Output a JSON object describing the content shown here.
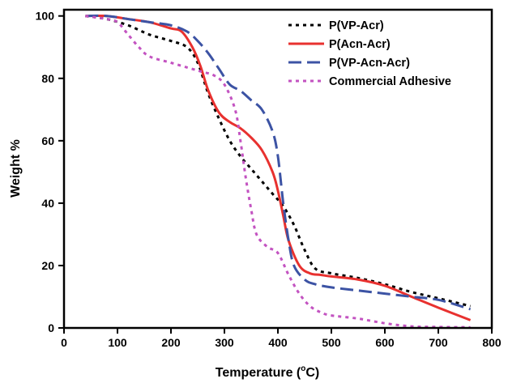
{
  "chart_data": {
    "type": "line",
    "title": "",
    "xlabel_main": "Temperature (",
    "xlabel_sup": "o",
    "xlabel_unit": "C)",
    "ylabel": "Weight %",
    "xlim": [
      0,
      800
    ],
    "ylim": [
      0,
      102
    ],
    "xticks": [
      0,
      100,
      200,
      300,
      400,
      500,
      600,
      700,
      800
    ],
    "yticks": [
      0,
      20,
      40,
      60,
      80,
      100
    ],
    "grid": false,
    "legend_position": "top-right",
    "series": [
      {
        "name": "P(VP-Acr)",
        "color": "#000000",
        "dash": "dotted",
        "x": [
          40,
          80,
          120,
          160,
          200,
          230,
          250,
          270,
          290,
          310,
          330,
          350,
          370,
          390,
          410,
          430,
          450,
          470,
          500,
          550,
          600,
          650,
          700,
          760
        ],
        "y": [
          100,
          99,
          97,
          94,
          92,
          90,
          85,
          75,
          67,
          60,
          55,
          51,
          47,
          43,
          39,
          33,
          25,
          19,
          17.5,
          16,
          14,
          11.5,
          9.5,
          7
        ]
      },
      {
        "name": "P(Acn-Acr)",
        "color": "#e8312f",
        "dash": "solid",
        "x": [
          40,
          80,
          120,
          160,
          200,
          220,
          240,
          255,
          270,
          290,
          310,
          330,
          350,
          370,
          390,
          400,
          410,
          420,
          440,
          460,
          480,
          500,
          550,
          600,
          650,
          700,
          760
        ],
        "y": [
          100,
          100,
          99,
          98,
          96,
          95,
          90,
          84,
          76,
          69,
          66,
          64,
          61,
          57,
          50,
          44,
          36,
          28,
          20,
          17.5,
          17,
          16.5,
          15.5,
          13.5,
          10,
          6.5,
          2.5
        ]
      },
      {
        "name": "P(VP-Acn-Acr)",
        "color": "#3c53a4",
        "dash": "dashed",
        "x": [
          40,
          80,
          120,
          160,
          200,
          230,
          250,
          270,
          290,
          310,
          330,
          350,
          370,
          390,
          400,
          410,
          420,
          430,
          450,
          470,
          500,
          550,
          600,
          650,
          700,
          760
        ],
        "y": [
          100,
          100,
          99,
          98,
          97,
          95,
          92,
          88,
          83,
          78,
          76,
          73,
          70,
          63,
          55,
          40,
          28,
          20,
          15.5,
          14,
          13,
          12,
          11,
          10,
          9,
          6
        ]
      },
      {
        "name": "Commercial Adhesive",
        "color": "#c353c1",
        "dash": "dotted",
        "x": [
          40,
          80,
          100,
          120,
          140,
          160,
          200,
          240,
          260,
          280,
          300,
          320,
          330,
          340,
          350,
          360,
          380,
          400,
          420,
          440,
          460,
          480,
          500,
          550,
          600,
          650,
          700,
          760
        ],
        "y": [
          100,
          99,
          98,
          94,
          90,
          87,
          85,
          83,
          82,
          81,
          78,
          70,
          60,
          48,
          38,
          30,
          26,
          24,
          17,
          11,
          7,
          5,
          4,
          3,
          1.5,
          0.5,
          0.3,
          0.2
        ]
      }
    ]
  }
}
